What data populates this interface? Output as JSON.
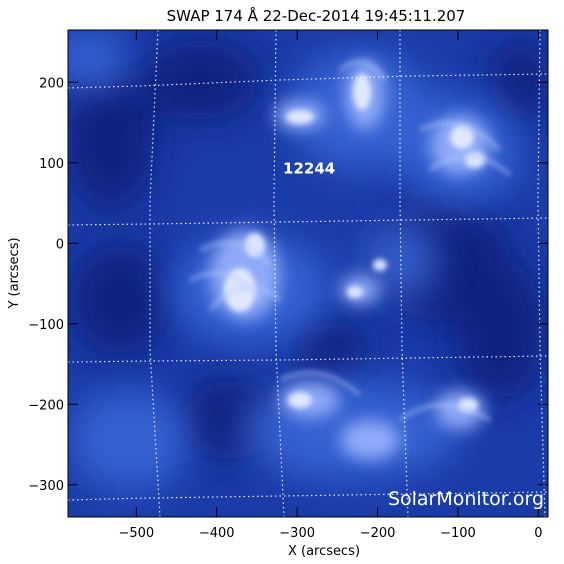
{
  "figure": {
    "title": "SWAP 174 Å 22-Dec-2014 19:45:11.207",
    "watermark": "SolarMonitor.org",
    "active_region": "12244"
  },
  "chart_data": {
    "type": "heatmap",
    "title": "SWAP 174 Å 22-Dec-2014 19:45:11.207",
    "xlabel": "X (arcsecs)",
    "ylabel": "Y (arcsecs)",
    "xlim": [
      -585,
      12
    ],
    "ylim": [
      -340,
      265
    ],
    "x_ticks": [
      {
        "value": -500,
        "label": "−500"
      },
      {
        "value": -400,
        "label": "−400"
      },
      {
        "value": -300,
        "label": "−300"
      },
      {
        "value": -200,
        "label": "−200"
      },
      {
        "value": -100,
        "label": "−100"
      },
      {
        "value": 0,
        "label": "0"
      }
    ],
    "y_ticks": [
      {
        "value": -300,
        "label": "−300"
      },
      {
        "value": -200,
        "label": "−200"
      },
      {
        "value": -100,
        "label": "−100"
      },
      {
        "value": 0,
        "label": "0"
      },
      {
        "value": 100,
        "label": "100"
      },
      {
        "value": 200,
        "label": "200"
      }
    ],
    "annotations": [
      {
        "text": "12244",
        "x": -300,
        "y": 93
      }
    ],
    "colors": {
      "background": "#1a3ca8",
      "dark": "#0a1f78",
      "bright": "#dfe8ff",
      "grid": "#ffffff"
    }
  }
}
